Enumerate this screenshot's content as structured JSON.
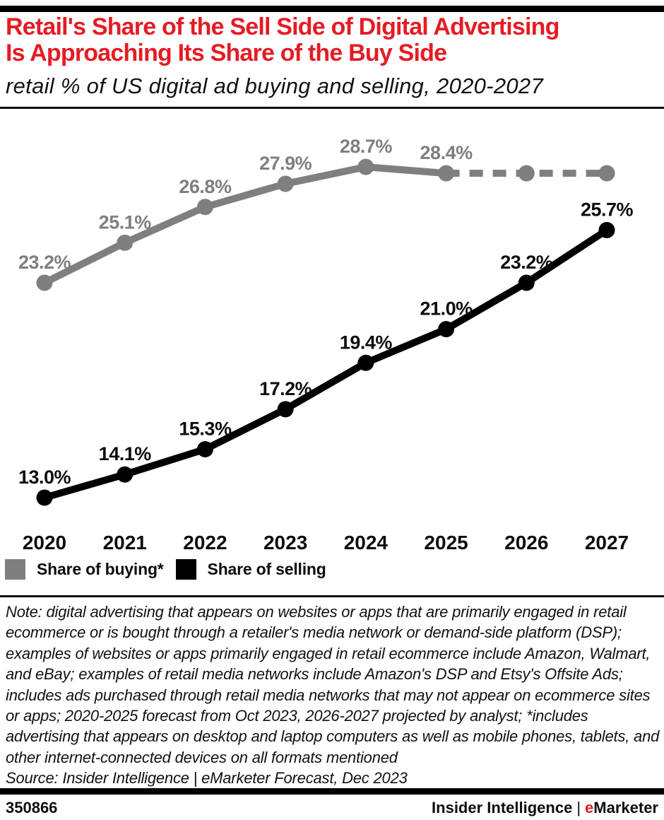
{
  "header": {
    "title_line1": "Retail's Share of the Sell Side of Digital Advertising",
    "title_line2": "Is Approaching Its Share of the Buy Side",
    "subtitle": "retail % of US digital ad buying and selling, 2020-2027",
    "title_color": "#e51b24"
  },
  "chart_data": {
    "type": "line",
    "title": "Retail's Share of the Sell Side of Digital Advertising Is Approaching Its Share of the Buy Side",
    "subtitle": "retail % of US digital ad buying and selling, 2020-2027",
    "categories": [
      "2020",
      "2021",
      "2022",
      "2023",
      "2024",
      "2025",
      "2026",
      "2027"
    ],
    "series": [
      {
        "name": "Share of buying*",
        "color": "#7f7f7f",
        "label_color": "#7f7f7f",
        "values": [
          23.2,
          25.1,
          26.8,
          27.9,
          28.7,
          28.4,
          28.4,
          28.4
        ],
        "show_labels": [
          true,
          true,
          true,
          true,
          true,
          true,
          false,
          false
        ],
        "dashed_from_index": 5
      },
      {
        "name": "Share of selling",
        "color": "#000000",
        "label_color": "#0d0d0d",
        "values": [
          13.0,
          14.1,
          15.3,
          17.2,
          19.4,
          21.0,
          23.2,
          25.7
        ],
        "show_labels": [
          true,
          true,
          true,
          true,
          true,
          true,
          true,
          true
        ],
        "dashed_from_index": null
      }
    ],
    "label_format": "one_decimal_percent",
    "ylim": [
      11,
      31
    ],
    "grid": false,
    "tick_color": "#0d0d0d",
    "legend_position": "bottom-left"
  },
  "legend": {
    "items": [
      {
        "label": "Share of buying*",
        "color": "#7f7f7f"
      },
      {
        "label": "Share of selling",
        "color": "#000000"
      }
    ]
  },
  "note": {
    "text": "Note: digital advertising that appears on websites or apps that are primarily engaged in retail ecommerce or is bought through a retailer's media network or demand-side platform (DSP); examples of websites or apps primarily engaged in retail ecommerce include Amazon, Walmart, and eBay; examples of retail media networks include Amazon's DSP and Etsy's Offsite Ads; includes ads purchased through retail media networks that may not appear on ecommerce sites or apps; 2020-2025 forecast from Oct 2023, 2026-2027 projected by analyst; *includes advertising that appears on desktop and laptop computers as well as mobile phones, tablets, and other internet-connected devices on all formats mentioned"
  },
  "source": {
    "text": "Source: Insider Intelligence | eMarketer Forecast, Dec 2023"
  },
  "footer": {
    "chart_id": "350866",
    "brand_name": "Insider Intelligence",
    "brand_separator": "|",
    "emarketer_e": "e",
    "emarketer_rest": "Marketer",
    "accent_color": "#e51b24"
  }
}
